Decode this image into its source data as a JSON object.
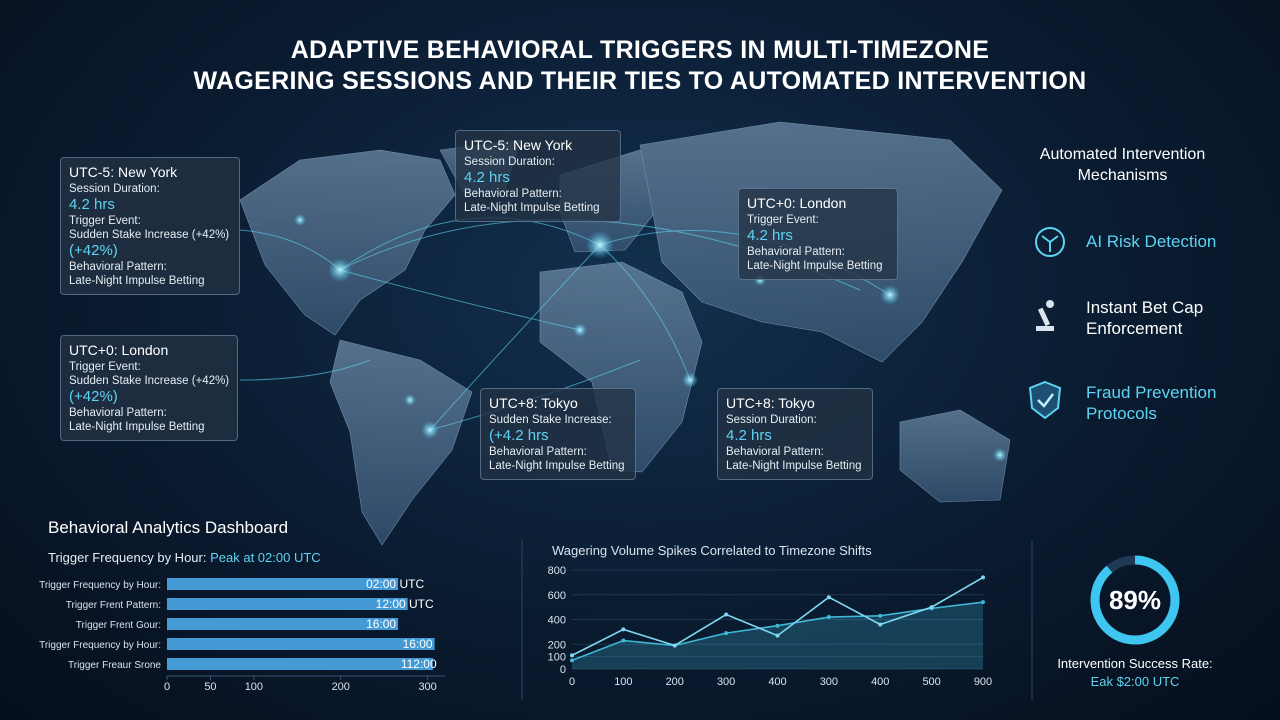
{
  "header": {
    "title_lines": [
      "ADAPTIVE BEHAVIORAL TRIGGERS IN MULTI-TIMEZONE",
      "WAGERING SESSIONS AND THEIR TIES TO AUTOMATED INTERVENTION"
    ]
  },
  "panels": [
    {
      "title": "UTC-5: New York",
      "lines": [
        {
          "text": "Session Duration:"
        },
        {
          "text": "4.2 hrs",
          "color": "#5fd3f3"
        },
        {
          "text": "Trigger Event:"
        },
        {
          "text": "Sudden Stake Increase (+42%)"
        },
        {
          "text": "(+42%)",
          "color": "#5fd3f3"
        },
        {
          "text": "Behavioral Pattern:"
        },
        {
          "text": "Late-Night Impulse Betting"
        }
      ]
    },
    {
      "title": "UTC-5: New York",
      "lines": [
        {
          "text": "Session Duration:"
        },
        {
          "text": "4.2 hrs",
          "color": "#5fd3f3"
        },
        {
          "text": "Behavioral Pattern:"
        },
        {
          "text": "Late-Night Impulse Betting"
        }
      ]
    },
    {
      "title": "UTC+0: London",
      "lines": [
        {
          "text": "Trigger Event:"
        },
        {
          "text": "4.2 hrs",
          "color": "#5fd3f3"
        },
        {
          "text": "Behavioral Pattern:"
        },
        {
          "text": "Late-Night Impulse Betting"
        }
      ]
    },
    {
      "title": "UTC+0: London",
      "lines": [
        {
          "text": "Trigger Event:"
        },
        {
          "text": "Sudden Stake Increase (+42%)"
        },
        {
          "text": "(+42%)",
          "color": "#5fd3f3"
        },
        {
          "text": "Behavioral Pattern:"
        },
        {
          "text": "Late-Night Impulse Betting"
        }
      ]
    },
    {
      "title": "UTC+8: Tokyo",
      "lines": [
        {
          "text": "Sudden Stake Increase:"
        },
        {
          "text": "(+4.2 hrs",
          "color": "#5fd3f3"
        },
        {
          "text": "Behavioral Pattern:"
        },
        {
          "text": "Late-Night Impulse Betting"
        }
      ]
    },
    {
      "title": "UTC+8: Tokyo",
      "lines": [
        {
          "text": "Session Duration:"
        },
        {
          "text": "4.2 hrs",
          "color": "#5fd3f3"
        },
        {
          "text": "Behavioral Pattern:"
        },
        {
          "text": "Late-Night Impulse Betting"
        }
      ]
    }
  ],
  "mechanisms": {
    "title_lines": [
      "Automated Intervention",
      "Mechanisms"
    ],
    "items": [
      {
        "lines": [
          "AI Risk Detection"
        ],
        "color": "#5fd3f3"
      },
      {
        "lines": [
          "Instant Bet Cap",
          "Enforcement"
        ],
        "color": "#ffffff"
      },
      {
        "lines": [
          "Fraud Prevention",
          "Protocols"
        ],
        "color": "#5fd3f3"
      }
    ]
  },
  "dashboard": {
    "title": "Behavioral Analytics Dashboard",
    "subtitle": "Trigger Frequency by Hour:",
    "subtitle_highlight": "Peak at 02:00 UTC"
  },
  "chart_data": [
    {
      "type": "hbar",
      "categories": [
        "Trigger Frequency by Hour:",
        "Trigger Frent Pattern:",
        "Trigger Frent Gour:",
        "Trigger Frequency by Hour:",
        "Trigger Freaur Srone"
      ],
      "values": [
        266,
        277,
        266,
        308,
        306
      ],
      "end_labels": [
        "02:00 UTC",
        "12:00 UTC",
        "16:00",
        "16:00",
        "112:00"
      ],
      "color": "#4aa8e8",
      "xlim": [
        0,
        320
      ],
      "xticks": [
        0,
        50,
        100,
        200,
        300
      ]
    },
    {
      "type": "line",
      "title": "Wagering Volume Spikes Correlated to Timezone Shifts",
      "categories": [
        "0",
        "100",
        "200",
        "300",
        "400",
        "300",
        "400",
        "500",
        "900"
      ],
      "series": [
        {
          "color": "#7fd8f0",
          "values": [
            110,
            320,
            190,
            440,
            270,
            580,
            360,
            500,
            740
          ]
        },
        {
          "color": "#3fb8d8",
          "values": [
            70,
            230,
            190,
            290,
            350,
            420,
            430,
            490,
            540
          ]
        }
      ],
      "ylim": [
        0,
        800
      ],
      "yticks": [
        0,
        100,
        200,
        400,
        600,
        800
      ],
      "grid": true
    },
    {
      "type": "donut",
      "value": 89,
      "value_label": "89%",
      "max": 100,
      "color": "#3fc6f0",
      "label": "Intervention Success Rate:",
      "sublabel": "Eak $2:00 UTC"
    }
  ]
}
